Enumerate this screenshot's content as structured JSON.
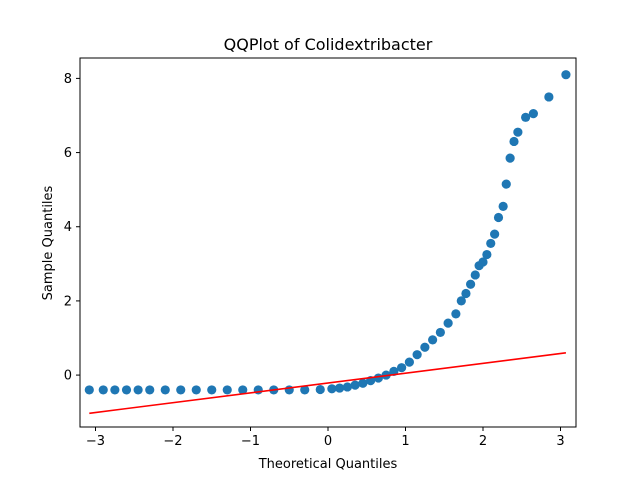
{
  "chart_data": {
    "type": "scatter",
    "title": "QQPlot of Colidextribacter",
    "xlabel": "Theoretical Quantiles",
    "ylabel": "Sample Quantiles",
    "xlim": [
      -3.2,
      3.2
    ],
    "ylim": [
      -1.4,
      8.55
    ],
    "xticks": [
      -3,
      -2,
      -1,
      0,
      1,
      2,
      3
    ],
    "xtick_labels": [
      "−3",
      "−2",
      "−1",
      "0",
      "1",
      "2",
      "3"
    ],
    "yticks": [
      0,
      2,
      4,
      6,
      8
    ],
    "ytick_labels": [
      "0",
      "2",
      "4",
      "6",
      "8"
    ],
    "grid": false,
    "colors": {
      "points": "#1f77b4",
      "fit_line": "#ff0000"
    },
    "series": [
      {
        "kind": "points",
        "x": [
          -3.08,
          -2.9,
          -2.75,
          -2.6,
          -2.45,
          -2.3,
          -2.1,
          -1.9,
          -1.7,
          -1.5,
          -1.3,
          -1.1,
          -0.9,
          -0.7,
          -0.5,
          -0.3,
          -0.1,
          0.05,
          0.15,
          0.25,
          0.35,
          0.45,
          0.55,
          0.65,
          0.75,
          0.85,
          0.95,
          1.05,
          1.15,
          1.25,
          1.35,
          1.45,
          1.55,
          1.65,
          1.72,
          1.78,
          1.84,
          1.9,
          1.95,
          2.0,
          2.05,
          2.1,
          2.15,
          2.2,
          2.26,
          2.3,
          2.35,
          2.4,
          2.45,
          2.55,
          2.65,
          2.85,
          3.07
        ],
        "y": [
          -0.4,
          -0.4,
          -0.4,
          -0.4,
          -0.4,
          -0.4,
          -0.4,
          -0.4,
          -0.4,
          -0.4,
          -0.4,
          -0.4,
          -0.4,
          -0.4,
          -0.4,
          -0.4,
          -0.39,
          -0.37,
          -0.35,
          -0.32,
          -0.27,
          -0.22,
          -0.15,
          -0.08,
          0.0,
          0.1,
          0.2,
          0.35,
          0.55,
          0.75,
          0.95,
          1.15,
          1.4,
          1.65,
          2.0,
          2.2,
          2.45,
          2.7,
          2.95,
          3.05,
          3.25,
          3.55,
          3.8,
          4.25,
          4.55,
          5.15,
          5.85,
          6.3,
          6.55,
          6.95,
          7.05,
          7.5,
          8.1
        ]
      },
      {
        "kind": "line",
        "x": [
          -3.08,
          3.07
        ],
        "y": [
          -1.03,
          0.6
        ]
      }
    ]
  }
}
